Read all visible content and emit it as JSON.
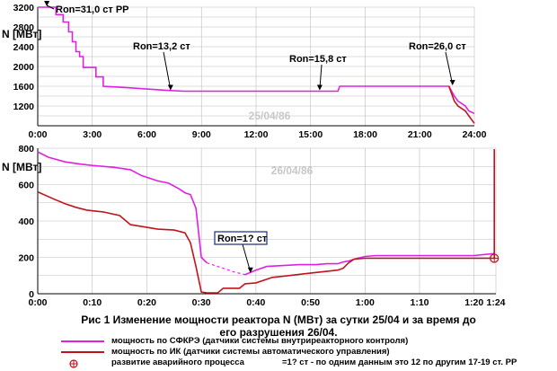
{
  "chart_data": [
    {
      "type": "line",
      "xlabel": "",
      "ylabel": "N [МВт]",
      "date_watermark": "25/04/86",
      "x_unit": "hours (time of day)",
      "xlim": [
        0,
        24
      ],
      "ylim": [
        800,
        3200
      ],
      "x_ticks": [
        "0:00",
        "3:00",
        "6:00",
        "9:00",
        "12:00",
        "15:00",
        "18:00",
        "21:00",
        "24:00"
      ],
      "y_ticks": [
        "1200",
        "1600",
        "2000",
        "2400",
        "2800",
        "3200"
      ],
      "grid": true,
      "series": [
        {
          "name": "мощность по СФКРЭ (датчики системы внутриреакторного контроля)",
          "color": "#e020e0",
          "points": [
            [
              0,
              3200
            ],
            [
              1.0,
              3200
            ],
            [
              1.0,
              3050
            ],
            [
              1.4,
              3050
            ],
            [
              1.4,
              2900
            ],
            [
              1.7,
              2900
            ],
            [
              1.7,
              2700
            ],
            [
              1.9,
              2700
            ],
            [
              1.9,
              2500
            ],
            [
              2.1,
              2500
            ],
            [
              2.1,
              2300
            ],
            [
              2.3,
              2300
            ],
            [
              2.3,
              2200
            ],
            [
              2.5,
              2200
            ],
            [
              2.5,
              1980
            ],
            [
              3.2,
              1980
            ],
            [
              3.2,
              1790
            ],
            [
              3.6,
              1790
            ],
            [
              3.6,
              1600
            ],
            [
              5.0,
              1570
            ],
            [
              7.0,
              1520
            ],
            [
              8.0,
              1500
            ],
            [
              16.5,
              1500
            ],
            [
              16.6,
              1600
            ],
            [
              22.6,
              1600
            ],
            [
              22.9,
              1400
            ],
            [
              23.1,
              1300
            ],
            [
              23.5,
              1200
            ],
            [
              23.7,
              1100
            ],
            [
              24.0,
              1050
            ]
          ]
        },
        {
          "name": "мощность по ИК (датчики системы автоматического управления)",
          "color": "#c0141c",
          "points": [
            [
              22.6,
              1600
            ],
            [
              22.9,
              1300
            ],
            [
              23.1,
              1200
            ],
            [
              23.5,
              1100
            ],
            [
              23.7,
              1000
            ],
            [
              24.0,
              850
            ]
          ]
        }
      ],
      "annotations": [
        {
          "text": "Ron=31,0 ст РР",
          "x": 0.5,
          "y": 3200
        },
        {
          "text": "Ron=13,2 ст",
          "x": 7.3,
          "y": 1500
        },
        {
          "text": "Ron=15,8 ст",
          "x": 15.5,
          "y": 1500
        },
        {
          "text": "Ron=26,0 ст",
          "x": 22.8,
          "y": 1600
        }
      ]
    },
    {
      "type": "line",
      "xlabel": "",
      "ylabel": "N [МВт]",
      "date_watermark": "26/04/86",
      "x_unit": "minutes after 0:00",
      "xlim": [
        0,
        84
      ],
      "ylim": [
        0,
        800
      ],
      "x_ticks": [
        "0:00",
        "0:10",
        "0:20",
        "0:30",
        "0:40",
        "0:50",
        "1:00",
        "1:10",
        "1:20",
        "1:24"
      ],
      "y_ticks": [
        "0",
        "200",
        "400",
        "600",
        "800"
      ],
      "grid": true,
      "series": [
        {
          "name": "мощность по СФКРЭ (датчики системы внутриреакторного контроля)",
          "color": "#e020e0",
          "points": [
            [
              0,
              780
            ],
            [
              2,
              750
            ],
            [
              5,
              725
            ],
            [
              8,
              712
            ],
            [
              10,
              705
            ],
            [
              14,
              695
            ],
            [
              17,
              682
            ],
            [
              19,
              650
            ],
            [
              22,
              620
            ],
            [
              24,
              608
            ],
            [
              26,
              575
            ],
            [
              27,
              555
            ],
            [
              28,
              545
            ],
            [
              29,
              470
            ],
            [
              30,
              200
            ],
            [
              31,
              170
            ],
            [
              32,
              160
            ],
            [
              34,
              140
            ],
            [
              36,
              120
            ],
            [
              38,
              105
            ],
            [
              40,
              130
            ],
            [
              42,
              150
            ],
            [
              45,
              155
            ],
            [
              48,
              160
            ],
            [
              51,
              160
            ],
            [
              53,
              165
            ],
            [
              55,
              165
            ],
            [
              56,
              175
            ],
            [
              57,
              180
            ],
            [
              58,
              190
            ],
            [
              60,
              205
            ],
            [
              62,
              210
            ],
            [
              65,
              210
            ],
            [
              70,
              210
            ],
            [
              75,
              210
            ],
            [
              80,
              210
            ],
            [
              83.4,
              220
            ],
            [
              83.7,
              220
            ]
          ]
        },
        {
          "name": "мощность по ИК (датчики системы автоматического управления)",
          "color": "#c0141c",
          "points": [
            [
              0,
              560
            ],
            [
              3,
              520
            ],
            [
              5,
              495
            ],
            [
              7,
              475
            ],
            [
              9,
              460
            ],
            [
              12,
              450
            ],
            [
              15,
              430
            ],
            [
              17,
              380
            ],
            [
              19,
              370
            ],
            [
              22,
              355
            ],
            [
              25,
              350
            ],
            [
              27,
              335
            ],
            [
              28,
              280
            ],
            [
              29,
              150
            ],
            [
              30,
              10
            ],
            [
              31,
              5
            ],
            [
              33,
              5
            ],
            [
              34,
              30
            ],
            [
              37,
              30
            ],
            [
              38,
              55
            ],
            [
              40,
              60
            ],
            [
              43,
              90
            ],
            [
              46,
              100
            ],
            [
              49,
              110
            ],
            [
              52,
              120
            ],
            [
              55,
              130
            ],
            [
              56,
              140
            ],
            [
              57,
              170
            ],
            [
              58,
              190
            ],
            [
              60,
              195
            ],
            [
              65,
              195
            ],
            [
              70,
              195
            ],
            [
              75,
              195
            ],
            [
              80,
              195
            ],
            [
              83.5,
              195
            ],
            [
              83.7,
              195
            ],
            [
              83.7,
              795
            ]
          ]
        }
      ],
      "annotations": [
        {
          "text": "Ron=1? ст",
          "x": 39,
          "y": 110
        }
      ],
      "event_marker": {
        "x": 83.7,
        "y": 195
      }
    }
  ],
  "caption": {
    "line1": "Рис 1 Изменение мощности реактора N (МВт) за сутки 25/04 и за время до",
    "line2": "его разрушения 26/04."
  },
  "legend": {
    "sfkre": "мощность по СФКРЭ (датчики системы внутриреакторного контроля)",
    "ik": "мощность по ИК (датчики системы автоматического управления)",
    "event": "развитие аварийного процесса",
    "note": "=1? ст - по одним данным это 12 по другим 17-19 ст. РР"
  },
  "colors": {
    "sfkre": "#e020e0",
    "ik": "#c0141c",
    "grid": "#bdbdbd",
    "watermark": "#c8c8c8",
    "label_box": "#1a2a80"
  }
}
